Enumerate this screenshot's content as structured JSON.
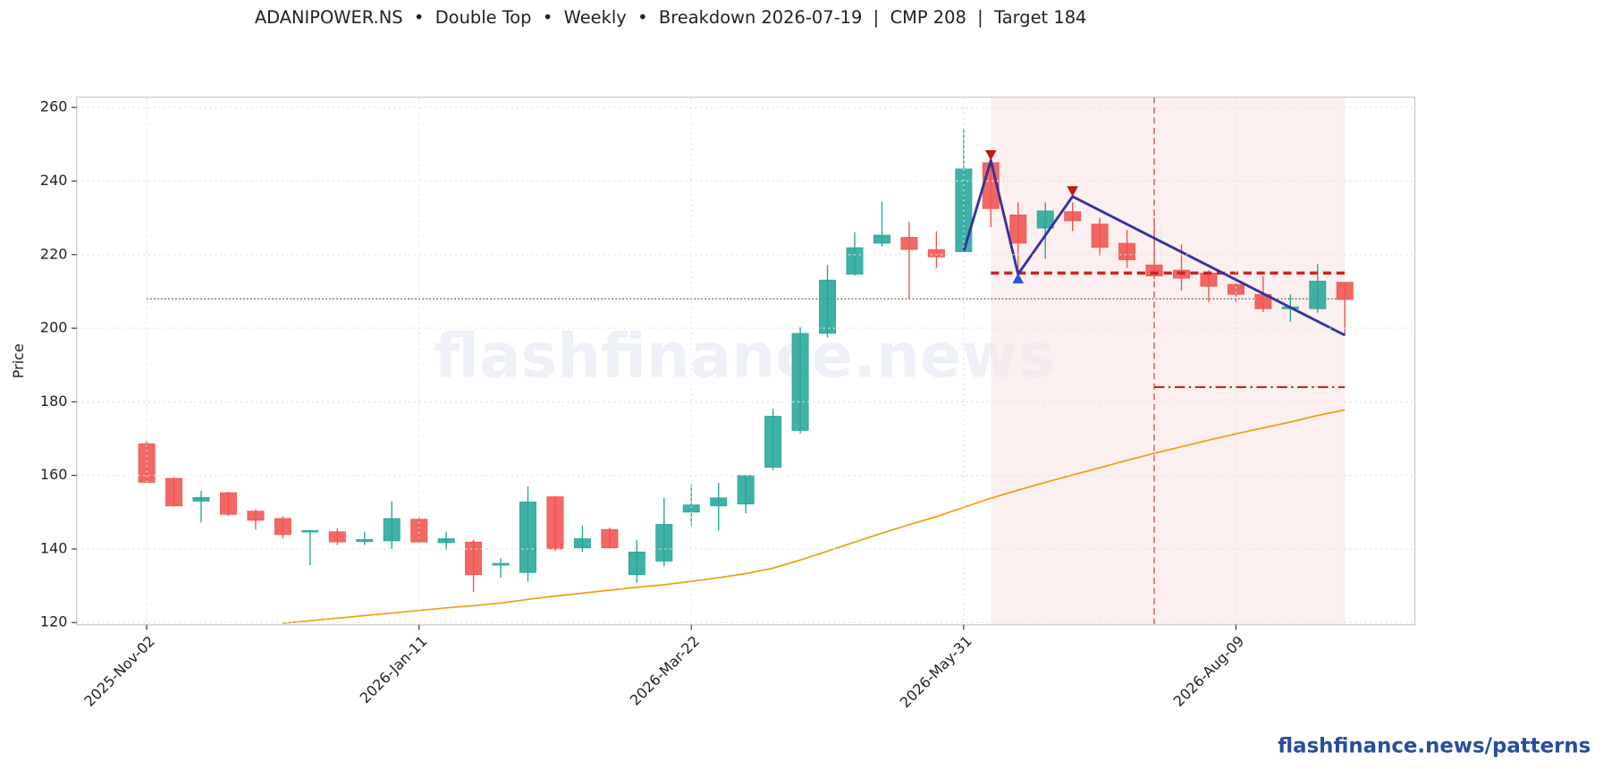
{
  "chart_data": {
    "type": "candlestick",
    "title": "ADANIPOWER.NS  •  Double Top  •  Weekly  •  Breakdown 2026-07-19  |  CMP 208  |  Target 184",
    "y_label": "Price",
    "watermark": "flashfinance.news",
    "footer": "flashfinance.news/patterns",
    "up_color": "#26a69a",
    "down_color": "#ef5350",
    "grid": true,
    "x": [
      "2025-11-02",
      "2025-11-09",
      "2025-11-16",
      "2025-11-23",
      "2025-11-30",
      "2025-12-07",
      "2025-12-14",
      "2025-12-21",
      "2025-12-28",
      "2026-01-04",
      "2026-01-11",
      "2026-01-18",
      "2026-01-25",
      "2026-02-01",
      "2026-02-08",
      "2026-02-15",
      "2026-02-22",
      "2026-03-01",
      "2026-03-08",
      "2026-03-15",
      "2026-03-22",
      "2026-03-29",
      "2026-04-05",
      "2026-04-12",
      "2026-04-19",
      "2026-04-26",
      "2026-05-03",
      "2026-05-10",
      "2026-05-17",
      "2026-05-24",
      "2026-05-31",
      "2026-06-07",
      "2026-06-14",
      "2026-06-21",
      "2026-06-28",
      "2026-07-05",
      "2026-07-12",
      "2026-07-19",
      "2026-07-26",
      "2026-08-02",
      "2026-08-09",
      "2026-08-16",
      "2026-08-23",
      "2026-08-30",
      "2026-09-06"
    ],
    "open": [
      168.6,
      159.2,
      153,
      155.3,
      150.3,
      148.3,
      144.6,
      144.7,
      142,
      142.2,
      148.1,
      141.7,
      141.9,
      135.6,
      133.6,
      154.2,
      140.3,
      145.3,
      133,
      136.7,
      150,
      151.7,
      152.2,
      162.2,
      172.2,
      198.6,
      214.7,
      223.1,
      224.7,
      221.4,
      220.8,
      245,
      230.8,
      227.2,
      231.7,
      228.3,
      223.1,
      217.2,
      215.8,
      215,
      211.9,
      209.2,
      205.3,
      205.3,
      212.5
    ],
    "high": [
      169.7,
      159.5,
      155.8,
      155.5,
      150.8,
      148.9,
      145.2,
      145.6,
      144.7,
      153,
      148.9,
      144.7,
      142.5,
      137.5,
      157,
      154.4,
      146.4,
      145.8,
      142.5,
      153.9,
      157.5,
      158,
      160,
      178.1,
      200.3,
      217.2,
      226.1,
      234.4,
      228.9,
      226.4,
      254.2,
      246.7,
      234.2,
      234.2,
      234.2,
      230,
      226.7,
      230,
      222.8,
      215.8,
      214.2,
      214.2,
      209.2,
      217.5,
      212.5
    ],
    "low": [
      158,
      151.5,
      147.2,
      149,
      145.3,
      142.8,
      135.6,
      141.1,
      141.1,
      140,
      141.4,
      139.7,
      128.3,
      132.2,
      131.1,
      139.4,
      139.2,
      140,
      130.8,
      135.3,
      146.4,
      145,
      149.7,
      161.4,
      171.4,
      197.5,
      214.2,
      222.2,
      207.8,
      216.4,
      220.8,
      227.5,
      214.7,
      218.9,
      226.4,
      219.7,
      216.4,
      213.3,
      210.3,
      207.2,
      207.2,
      204.4,
      201.7,
      204.2,
      198
    ],
    "close": [
      158.1,
      151.7,
      154,
      149.4,
      147.8,
      143.9,
      145,
      141.9,
      142.6,
      148.3,
      141.9,
      142.8,
      133,
      136.1,
      152.8,
      140,
      142.8,
      140.3,
      139.2,
      146.7,
      152,
      153.9,
      160,
      176.1,
      198.6,
      213.1,
      221.9,
      225.3,
      221.4,
      219.4,
      243.3,
      232.5,
      223.1,
      231.9,
      229.2,
      222,
      218.6,
      214.2,
      213.6,
      211.4,
      209.2,
      205.3,
      205.8,
      212.8,
      207.8
    ],
    "sma": {
      "color": "#f39c12",
      "values": [
        null,
        null,
        null,
        null,
        null,
        119.8,
        120.5,
        121.2,
        121.9,
        122.6,
        123.3,
        124,
        124.6,
        125.3,
        126.3,
        127.2,
        128,
        128.8,
        129.6,
        130.3,
        131.2,
        132.2,
        133.3,
        134.8,
        137,
        139.4,
        141.9,
        144.3,
        146.6,
        148.8,
        151.3,
        153.8,
        156,
        158.1,
        160.1,
        162.1,
        164.1,
        166,
        167.8,
        169.6,
        171.3,
        172.9,
        174.5,
        176.3,
        177.8
      ]
    },
    "cmp_line": {
      "value": 208,
      "from": "2025-11-02",
      "to": "2026-09-06",
      "color": "#444444"
    },
    "shade": {
      "from": "2026-06-07",
      "to": "2026-09-06",
      "color": "#f8e4e4"
    },
    "breakdown": {
      "x": "2026-07-19",
      "color": "#e07070"
    },
    "neckline": {
      "value": 215,
      "from": "2026-06-07",
      "to": "2026-09-06",
      "color": "#cc2222"
    },
    "target_line": {
      "value": 184,
      "from": "2026-07-19",
      "to": "2026-09-06",
      "color": "#cc2222"
    },
    "pattern_line": {
      "color": "#333399",
      "x": [
        "2026-05-31",
        "2026-06-07",
        "2026-06-14",
        "2026-06-28",
        "2026-09-06"
      ],
      "values": [
        220.8,
        245.6,
        214.7,
        235.8,
        198.1
      ]
    },
    "peaks": {
      "color": "#cc1111",
      "x": [
        "2026-06-07",
        "2026-06-28"
      ],
      "values": [
        247,
        237.2
      ]
    },
    "trough": {
      "color": "#2255dd",
      "x": [
        "2026-06-14"
      ],
      "values": [
        213.6
      ]
    },
    "xlim": [
      "2025-10-15",
      "2026-09-24"
    ],
    "xticks": [
      {
        "value": "2025-11-02",
        "label": "2025-Nov-02"
      },
      {
        "value": "2026-01-11",
        "label": "2026-Jan-11"
      },
      {
        "value": "2026-03-22",
        "label": "2026-Mar-22"
      },
      {
        "value": "2026-05-31",
        "label": "2026-May-31"
      },
      {
        "value": "2026-08-09",
        "label": "2026-Aug-09"
      }
    ],
    "ylim": [
      119.4,
      262.8
    ],
    "yticks": [
      120,
      140,
      160,
      180,
      200,
      220,
      240,
      260
    ]
  }
}
